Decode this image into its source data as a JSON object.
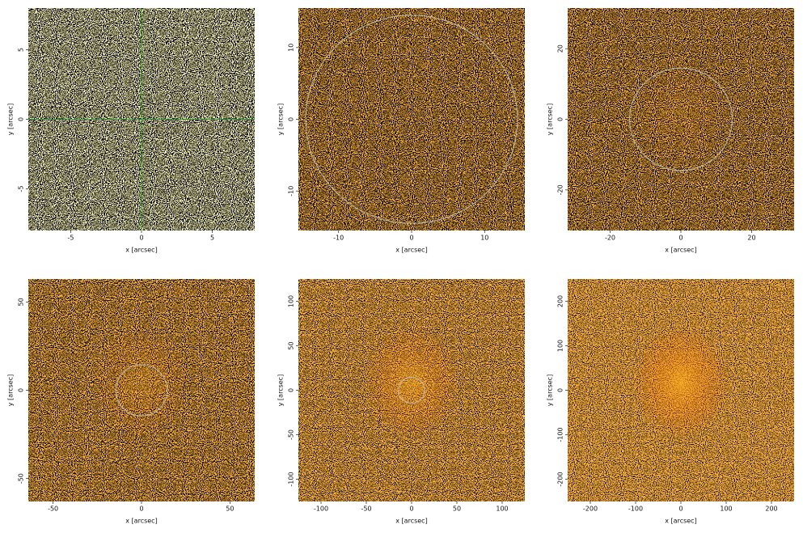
{
  "chart_data": [
    {
      "type": "image",
      "xlabel": "x [arcsec]",
      "ylabel": "y [arcsec]",
      "xlim": [
        -8,
        8
      ],
      "ylim": [
        -8,
        8
      ],
      "xticks": [
        -5,
        0,
        5
      ],
      "yticks": [
        -5,
        0,
        5
      ],
      "crosshair": [
        0,
        0
      ],
      "crosshair_color": "#2f9a2f"
    },
    {
      "type": "image",
      "xlabel": "x [arcsec]",
      "ylabel": "y [arcsec]",
      "xlim": [
        -15.5,
        15.5
      ],
      "ylim": [
        -15.5,
        15.5
      ],
      "xticks": [
        -10,
        0,
        10
      ],
      "yticks": [
        -10,
        0,
        10
      ],
      "circle_radius": 14.5
    },
    {
      "type": "image",
      "xlabel": "x [arcsec]",
      "ylabel": "y [arcsec]",
      "xlim": [
        -32,
        32
      ],
      "ylim": [
        -31.5,
        31.5
      ],
      "xticks": [
        -20,
        0,
        20
      ],
      "yticks": [
        -20,
        0,
        20
      ],
      "circle_radius": 14.5
    },
    {
      "type": "image",
      "xlabel": "x [arcsec]",
      "ylabel": "y [arcsec]",
      "xlim": [
        -64,
        64
      ],
      "ylim": [
        -63,
        63
      ],
      "xticks": [
        -50,
        0,
        50
      ],
      "yticks": [
        -50,
        0,
        50
      ],
      "circle_radius": 14.5
    },
    {
      "type": "image",
      "xlabel": "x [arcsec]",
      "ylabel": "y [arcsec]",
      "xlim": [
        -125,
        125
      ],
      "ylim": [
        -125,
        125
      ],
      "xticks": [
        -100,
        -50,
        0,
        50,
        100
      ],
      "yticks": [
        -100,
        -50,
        0,
        50,
        100
      ],
      "circle_radius": 14.5
    },
    {
      "type": "image",
      "xlabel": "x [arcsec]",
      "ylabel": "y [arcsec]",
      "xlim": [
        -250,
        250
      ],
      "ylim": [
        -250,
        250
      ],
      "xticks": [
        -200,
        -100,
        0,
        100,
        200
      ],
      "yticks": [
        -200,
        -100,
        0,
        100,
        200
      ]
    }
  ]
}
